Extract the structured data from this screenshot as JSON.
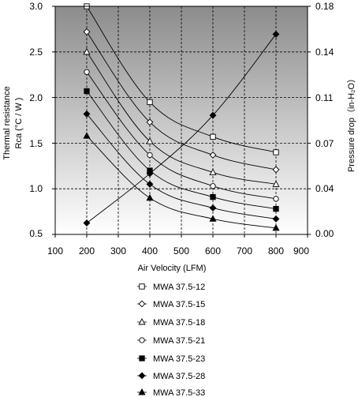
{
  "chart_data": {
    "type": "line",
    "xlabel": "Air Velocity (LFM)",
    "ylabel_left_line1": "Thermal resistance",
    "ylabel_left_line2": "Rca (°C / W )",
    "ylabel_right": "Pressure drop（in-H₂O）",
    "xlim": [
      100,
      900
    ],
    "ylim": [
      0.5,
      3.0
    ],
    "y2lim": [
      0.0,
      0.18
    ],
    "x_ticks": [
      "100",
      "200",
      "300",
      "400",
      "500",
      "600",
      "700",
      "800",
      "900"
    ],
    "y_ticks": [
      "3.0",
      "2.5",
      "2.0",
      "1.5",
      "1.0",
      "0.5"
    ],
    "y2_ticks": [
      "0.18",
      "0.14",
      "0.11",
      "0.07",
      "0.04",
      "0.00"
    ],
    "grid": true,
    "background_gradient": [
      "#8c8c8c",
      "#ffffff"
    ],
    "x": [
      200,
      400,
      600,
      800
    ],
    "series": [
      {
        "name": "MWA 37.5-12",
        "marker": "square-open",
        "values": [
          3.0,
          1.95,
          1.57,
          1.4
        ]
      },
      {
        "name": "MWA 37.5-15",
        "marker": "diamond-open",
        "values": [
          2.72,
          1.73,
          1.37,
          1.21
        ]
      },
      {
        "name": "MWA 37.5-18",
        "marker": "triangle-open",
        "values": [
          2.5,
          1.52,
          1.18,
          1.05
        ]
      },
      {
        "name": "MWA 37.5-21",
        "marker": "circle-open",
        "values": [
          2.28,
          1.37,
          1.03,
          0.89
        ]
      },
      {
        "name": "MWA 37.5-23",
        "marker": "square-filled",
        "values": [
          2.07,
          1.2,
          0.91,
          0.78
        ]
      },
      {
        "name": "MWA 37.5-28",
        "marker": "diamond-filled",
        "values": [
          1.82,
          1.05,
          0.79,
          0.67
        ]
      },
      {
        "name": "MWA 37.5-33",
        "marker": "triangle-filled",
        "values": [
          1.58,
          0.9,
          0.67,
          0.57
        ]
      }
    ],
    "pressure_drop": {
      "marker": "diamond-filled",
      "axis": "right",
      "values": [
        0.009,
        0.048,
        0.094,
        0.158
      ]
    },
    "legend_position": "below"
  }
}
